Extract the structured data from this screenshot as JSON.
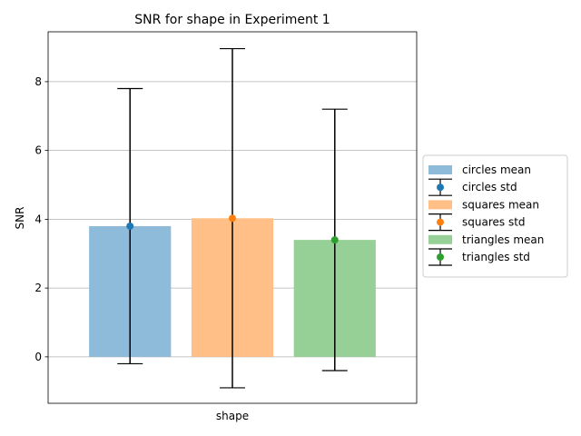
{
  "chart_data": {
    "type": "bar",
    "title": "SNR for shape in Experiment 1",
    "xlabel": "shape",
    "ylabel": "SNR",
    "ylim": [
      -1.35,
      9.45
    ],
    "yticks": [
      0,
      2,
      4,
      6,
      8
    ],
    "grid": "y",
    "legend_position": "right",
    "series": [
      {
        "name": "circles",
        "mean": 3.8,
        "std": 4.0,
        "color": "#1f77b4"
      },
      {
        "name": "squares",
        "mean": 4.03,
        "std": 4.93,
        "color": "#ff7f0e"
      },
      {
        "name": "triangles",
        "mean": 3.4,
        "std": 3.8,
        "color": "#2ca02c"
      }
    ],
    "legend": [
      {
        "label": "circles  mean",
        "kind": "bar",
        "series": 0
      },
      {
        "label": "circles  std",
        "kind": "err",
        "series": 0
      },
      {
        "label": "squares  mean",
        "kind": "bar",
        "series": 1
      },
      {
        "label": "squares  std",
        "kind": "err",
        "series": 1
      },
      {
        "label": "triangles  mean",
        "kind": "bar",
        "series": 2
      },
      {
        "label": "triangles  std",
        "kind": "err",
        "series": 2
      }
    ]
  }
}
